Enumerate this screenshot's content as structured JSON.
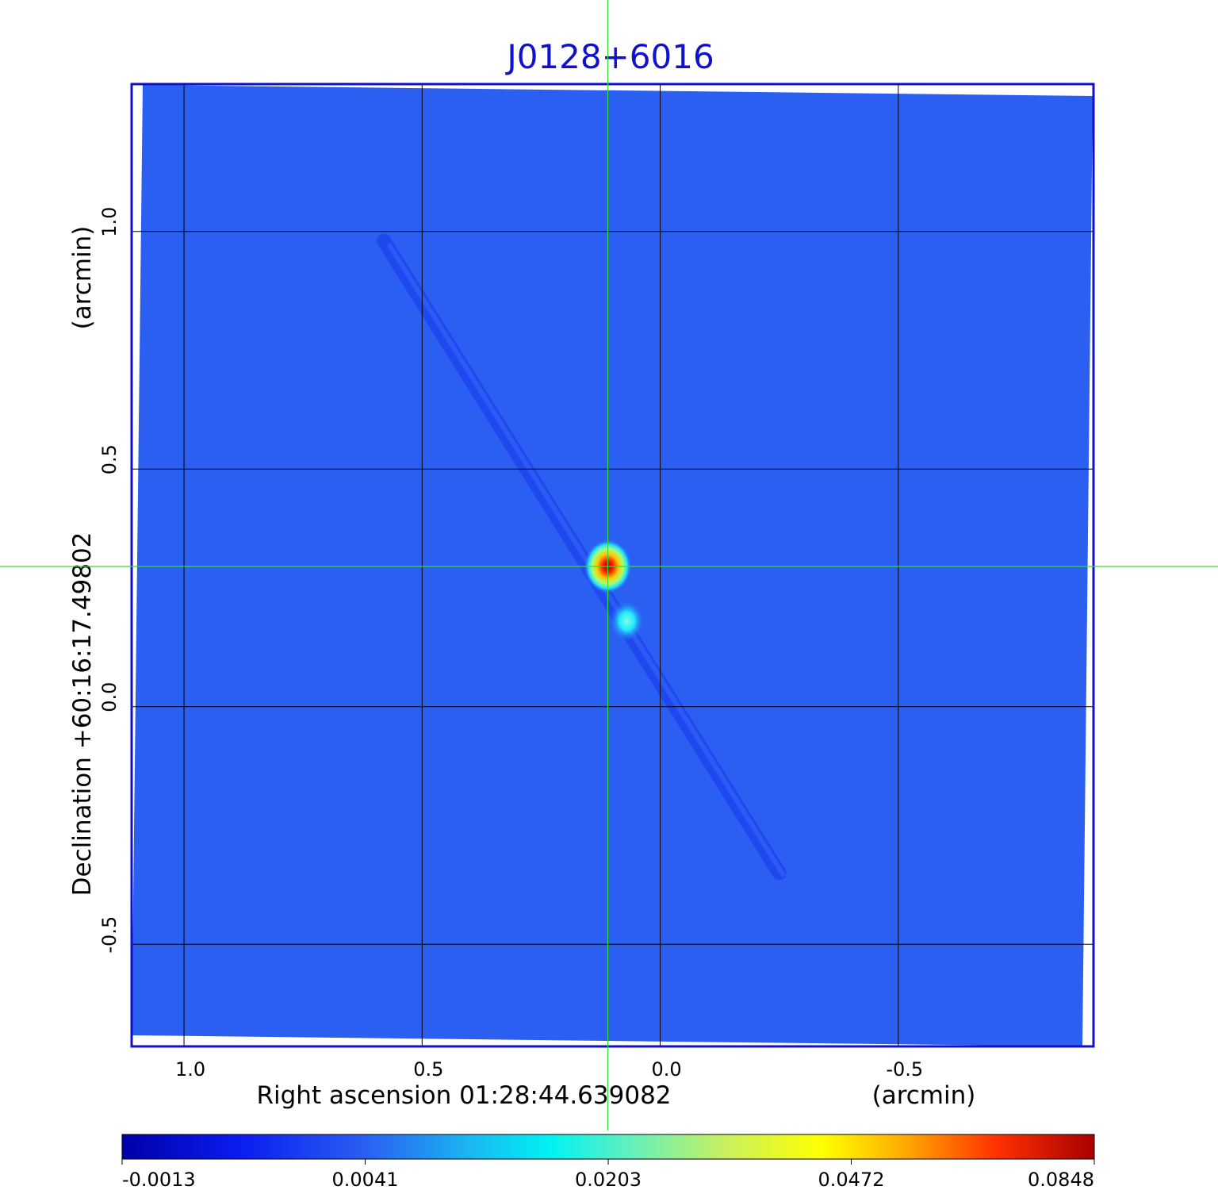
{
  "chart_data": {
    "type": "heatmap",
    "title": "J0128+6016",
    "x_axis": {
      "label": "Right ascension  01:28:44.639082",
      "unit_label": "(arcmin)",
      "range": [
        1.11,
        -0.91
      ],
      "ticks": [
        1.0,
        0.5,
        0.0,
        -0.5
      ],
      "tick_labels": [
        "1.0",
        "0.5",
        "0.0",
        "-0.5"
      ],
      "direction": "decreasing-right"
    },
    "y_axis": {
      "label": "Declination  +60:16:17.49802",
      "unit_label": "(arcmin)",
      "range": [
        -0.715,
        1.31
      ],
      "ticks": [
        -0.5,
        0.0,
        0.5,
        1.0
      ],
      "tick_labels": [
        "-0.5",
        "0.0",
        "0.5",
        "1.0"
      ]
    },
    "grid": true,
    "grid_color": "#000000",
    "crosshair": {
      "x": 0.11,
      "y": 0.295,
      "color": "#33dd33"
    },
    "colormap": "jet",
    "colorbar": {
      "orientation": "horizontal",
      "placement": "bottom",
      "tick_labels": [
        "-0.0013",
        "0.0041",
        "0.0203",
        "0.0472",
        "0.0848"
      ]
    },
    "background_level": 0.0041,
    "sources": [
      {
        "x": 0.11,
        "y": 0.295,
        "peak": 0.0848,
        "note": "primary compact source"
      },
      {
        "x": 0.07,
        "y": 0.18,
        "peak": 0.0203,
        "note": "secondary component"
      }
    ],
    "features": [
      {
        "kind": "diagonal streak",
        "from": [
          0.58,
          0.98
        ],
        "to": [
          -0.25,
          -0.35
        ]
      }
    ]
  }
}
